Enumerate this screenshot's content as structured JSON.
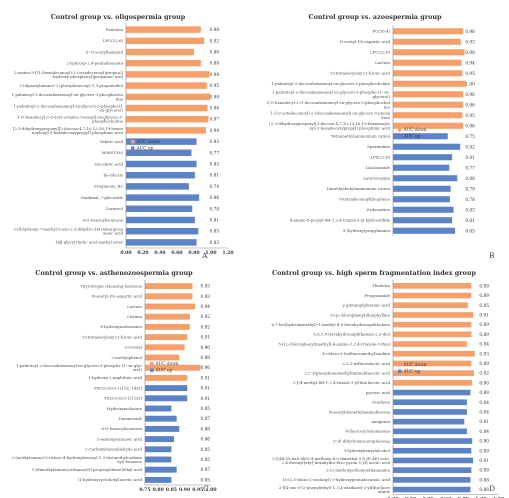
{
  "colors": {
    "down": "#f5a06a",
    "up": "#5b83c6",
    "text": "#4a4a4a",
    "axis": "#8a8a8a"
  },
  "chart_data": [
    {
      "type": "bar",
      "title": "Control group vs. oligospermia group",
      "panel_label": "A",
      "legend": {
        "down": "AUC down",
        "up": "AUC up"
      },
      "xlim": [
        0,
        1.2
      ],
      "ticks": [
        "0.00",
        "0.20",
        "0.40",
        "0.60",
        "0.80",
        "1.00",
        "1.20"
      ],
      "bars": [
        {
          "label": "Pentalen",
          "value": 0.88,
          "group": "down"
        },
        {
          "label": "LPC(22:6)",
          "value": 0.92,
          "group": "down"
        },
        {
          "label": "3'-O-acetyllamanid",
          "value": 0.8,
          "group": "down"
        },
        {
          "label": "2-hydroxy-2,4-pentadienoate",
          "value": 0.88,
          "group": "down"
        },
        {
          "label": "2-amino-3-[(1-(hexadecanoyl)-2-(octadecenoyl)propan)]-hydroxy-phosphoryl]propanoic acid",
          "value": 0.98,
          "group": "down"
        },
        {
          "label": "2-(dipentylamino)-2-(phosphonooxy)-1,3-propanediol",
          "value": 0.95,
          "group": "down"
        },
        {
          "label": "1-palmitoyl-2-docosahexaenoyl-sn-glycero-3-phosphocholine",
          "value": 0.99,
          "group": "down"
        },
        {
          "label": "1-palmitoyl-2-docosahexaenoyl-sn-glycero-3-phospho-(1'-sn-glycerol)",
          "value": 0.96,
          "group": "down"
        },
        {
          "label": "1-O-hexadecyl-2-O-[(Z)-octadec-9-enoyl]-sn-glycero-3-phosphocholine",
          "value": 0.97,
          "group": "down"
        },
        {
          "label": "[2,3-dihydroxypropoxy][2-docosa-4,7,10,13,16,19-hexaenoyloxy]-3-hexadecoxypropyl] phosphinic acid",
          "value": 0.94,
          "group": "down"
        },
        {
          "label": "Valeric acid",
          "value": 0.83,
          "group": "up"
        },
        {
          "label": "M388T395",
          "value": 0.77,
          "group": "up"
        },
        {
          "label": "Isocaleric acid",
          "value": 0.83,
          "group": "up"
        },
        {
          "label": "Ile-Glu-Ile",
          "value": 0.81,
          "group": "up"
        },
        {
          "label": "Fragmenin_B2",
          "value": 0.74,
          "group": "up"
        },
        {
          "label": "Guidimal_7-glucoside",
          "value": 0.86,
          "group": "up"
        },
        {
          "label": "Carnosol",
          "value": 0.78,
          "group": "up"
        },
        {
          "label": "6-O-benzoylisoarone",
          "value": 0.81,
          "group": "up"
        },
        {
          "label": "2-(4-hydroxy-7-methyl-5-oxo-2,3-dihydro-1H-inden)propanoic acid",
          "value": 0.85,
          "group": "up"
        },
        {
          "label": "18β-glycyrrhetic acid methyl ester",
          "value": 0.83,
          "group": "up"
        }
      ]
    },
    {
      "type": "bar",
      "title": "Control group vs. azoospermia group",
      "panel_label": "B",
      "legend": {
        "down": "AUC down",
        "up": "AUC up"
      },
      "xlim": [
        0,
        1.2
      ],
      "ticks": [],
      "bars": [
        {
          "label": "PC(38:4)",
          "value": 0.96,
          "group": "down"
        },
        {
          "label": "N-acetyl-DL-aspartic acid",
          "value": 0.93,
          "group": "down"
        },
        {
          "label": "LPC(22:6)",
          "value": 0.98,
          "group": "down"
        },
        {
          "label": "Lactate",
          "value": 0.94,
          "group": "down"
        },
        {
          "label": "5-(tetradecyloxy)-2-furoic acid",
          "value": 0.95,
          "group": "down"
        },
        {
          "label": "1-palmitoyl-2-docosahexaenoyl-sn-glycero-3-phosphocholine",
          "value": 1.0,
          "group": "down"
        },
        {
          "label": "1-palmitoyl-2-docosahexaenoyl-sn-glycero-3-phospho-(1'-sn-glycerol)",
          "value": 0.96,
          "group": "down"
        },
        {
          "label": "1-O-hexadecyl-2-O-docosahexaenoyl-sn-glycero-3-phosphocholine",
          "value": 0.96,
          "group": "down"
        },
        {
          "label": "1-(12-octadecenoyl)-2-(docosahexaenoyl)-sn-glycero-3-phosphate",
          "value": 0.95,
          "group": "down"
        },
        {
          "label": "[2,3-dihydroxypropoxy][2-docosa-4,7,10,13,16,19-hexaenoyloxy]-3-hexadecoxypropyl] phosphinic acid",
          "value": 0.96,
          "group": "down"
        },
        {
          "label": "Tetramethylammonium cation",
          "value": 0.75,
          "group": "up"
        },
        {
          "label": "Spermidine",
          "value": 0.92,
          "group": "up"
        },
        {
          "label": "LPS(22:6)",
          "value": 0.81,
          "group": "up"
        },
        {
          "label": "Linoleamide",
          "value": 0.77,
          "group": "up"
        },
        {
          "label": "Lauroscopain",
          "value": 0.88,
          "group": "up"
        },
        {
          "label": "Dimethylbutylammonium cation",
          "value": 0.79,
          "group": "up"
        },
        {
          "label": "8-tetradecenoylthiophene",
          "value": 0.78,
          "group": "up"
        },
        {
          "label": "6-phenatine",
          "value": 0.83,
          "group": "up"
        },
        {
          "label": "4-amino-5-propyl-4H-1,2,4-triazol-3-yl hydrosulfide",
          "value": 0.81,
          "group": "up"
        },
        {
          "label": "3-(hydroxy)propylamine",
          "value": 0.85,
          "group": "up"
        }
      ]
    },
    {
      "type": "bar",
      "title": "Control group vs. asthenozoospermia group",
      "panel_label": "C",
      "legend": {
        "down": "AUC down",
        "up": "AUC up"
      },
      "xlim": [
        0.75,
        1.0
      ],
      "ticks": [
        "0.75",
        "0.80",
        "0.85",
        "0.90",
        "0.95",
        "1.00"
      ],
      "bars": [
        {
          "label": "Thyrotropin releasing hormone",
          "value": 0.93,
          "group": "down"
        },
        {
          "label": "N-acetyl-DL-aspartic acid",
          "value": 0.93,
          "group": "down"
        },
        {
          "label": "Lactate",
          "value": 0.94,
          "group": "down"
        },
        {
          "label": "Citrinin",
          "value": 0.92,
          "group": "down"
        },
        {
          "label": "6-hydroxymelatonine",
          "value": 0.92,
          "group": "down"
        },
        {
          "label": "5-(tetradecyloxy)-2-furoic acid",
          "value": 0.91,
          "group": "down"
        },
        {
          "label": "3-veratal",
          "value": 0.9,
          "group": "down"
        },
        {
          "label": "2-methylphenol",
          "value": 0.88,
          "group": "down"
        },
        {
          "label": "1-palmitoyl-2-docosahexaenoyl-sn-glycero-3-phospho-(1'-sn-glycerol)",
          "value": 0.96,
          "group": "down"
        },
        {
          "label": "1-hydroxy-2-naphthoic acid",
          "value": 0.91,
          "group": "down"
        },
        {
          "label": "PS(20:0/20:1(11Z, 14Z))",
          "value": 0.91,
          "group": "up"
        },
        {
          "label": "PS(20:0/20:1(11Z))",
          "value": 0.91,
          "group": "up"
        },
        {
          "label": "Hydroxymalonate",
          "value": 0.85,
          "group": "up"
        },
        {
          "label": "Daminozide",
          "value": 0.87,
          "group": "up"
        },
        {
          "label": "6-O-benzoylisoarone",
          "value": 0.88,
          "group": "up"
        },
        {
          "label": "5-aminopentanoic acid",
          "value": 0.86,
          "group": "up"
        },
        {
          "label": "2-Carboxybenzaldehyde acid",
          "value": 0.85,
          "group": "up"
        },
        {
          "label": "2-(methylamino)-5-chloro-4-hydroxybenzoyl-1,3-bis(methylcarbamoyl)-benzene",
          "value": 0.85,
          "group": "up"
        },
        {
          "label": "1-[dimethylamino(carbamoyl)]-propenylidene]ethyl acid",
          "value": 0.87,
          "group": "up"
        },
        {
          "label": "(1-hydroxycyclohexyl)acetic acid",
          "value": 0.85,
          "group": "up"
        }
      ]
    },
    {
      "type": "bar",
      "title": "Control group vs. high sperm fragmentation index group",
      "panel_label": "D",
      "legend": {
        "down": "AUC down",
        "up": "AUC up"
      },
      "xlim": [
        0,
        1.2
      ],
      "ticks": [
        "0.00",
        "0.20",
        "0.40",
        "0.60",
        "0.80",
        "1.00",
        "1.20"
      ],
      "bars": [
        {
          "label": "Thiolutin",
          "value": 0.89,
          "group": "down"
        },
        {
          "label": "Propyzamide",
          "value": 0.89,
          "group": "down"
        },
        {
          "label": "γ-glutamylglutamic acid",
          "value": 0.85,
          "group": "down"
        },
        {
          "label": "8-(p-chlorophenyl)thiophylline",
          "value": 0.91,
          "group": "down"
        },
        {
          "label": "6,7-bis(hydroxymethyl)-1-methyl-4,5-tetrahydronaphthalene",
          "value": 0.89,
          "group": "down"
        },
        {
          "label": "5,6,7,8-tetrahydronaphthalene-2,3-diol",
          "value": 0.89,
          "group": "down"
        },
        {
          "label": "5-[(2-chlorophenyl)methyl]-4-amino-1,2,4-triazole-3-thiol",
          "value": 0.84,
          "group": "down"
        },
        {
          "label": "4-chloro-3-(trifluoromethyl)aniline",
          "value": 0.93,
          "group": "down"
        },
        {
          "label": "3,3,3-trifluorolactic acid",
          "value": 0.89,
          "group": "down"
        },
        {
          "label": "2,2'-[(phosphonomethyl)imino]diacetic acid",
          "value": 0.92,
          "group": "down"
        },
        {
          "label": "2-[(4-methyl-4H-1,2,4-triazol-3-yl)thio]acetic acid",
          "value": 0.9,
          "group": "down"
        },
        {
          "label": "pyruvic acid",
          "value": 0.88,
          "group": "up"
        },
        {
          "label": "Ozadusin",
          "value": 0.84,
          "group": "up"
        },
        {
          "label": "N-acetyldemethylaminoflavone",
          "value": 0.84,
          "group": "up"
        },
        {
          "label": "Amigenin",
          "value": 0.81,
          "group": "up"
        },
        {
          "label": "4-fluorocyclohexanone",
          "value": 0.84,
          "group": "up"
        },
        {
          "label": "3',4'-dihydroxyacetophenone",
          "value": 0.9,
          "group": "up"
        },
        {
          "label": "3-hydroxybenzylalcohol",
          "value": 0.89,
          "group": "up"
        },
        {
          "label": "2-[(4R,5S,6aS,6bS)-4-methoxy-6,6-dimethyl-5-[(2E,4E)-octa-2,4-dienoyl]oxy]-hexahydro-furo-pyran-1-yl] acetic acid",
          "value": 0.91,
          "group": "up"
        },
        {
          "label": "2-(2-methoxyethoxy)ethanamine",
          "value": 0.89,
          "group": "up"
        },
        {
          "label": "15-(2,5-dioxo-2-oxolanyl)-3-hydroxypentadecanoic acid",
          "value": 0.88,
          "group": "up"
        },
        {
          "label": "2-[[4-oxo-5-(2-phenylethyl)-1,3,4-oxadiazol-2-yl]thio]acetamide",
          "value": 0.88,
          "group": "up"
        }
      ]
    }
  ]
}
